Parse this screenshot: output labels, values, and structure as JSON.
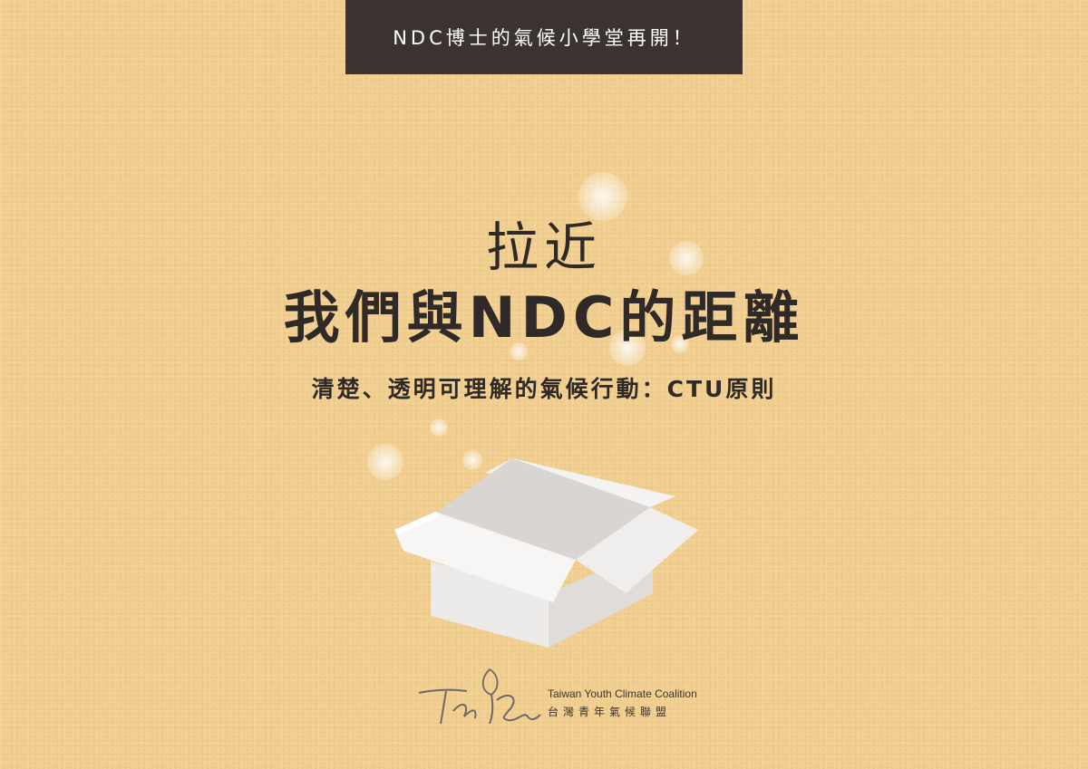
{
  "banner": {
    "text": "NDC博士的氣候小學堂再開！"
  },
  "title": {
    "line1": "拉近",
    "line2": "我們與NDC的距離"
  },
  "subtitle": {
    "text": "清楚、透明可理解的氣候行動：CTU原則"
  },
  "logo": {
    "name_en": "Taiwan Youth Climate Coalition",
    "name_zh": "台灣青年氣候聯盟"
  },
  "colors": {
    "background": "#f2cf8f",
    "banner": "#3a3330",
    "text": "#2f2a27",
    "box": "#eeecea"
  }
}
